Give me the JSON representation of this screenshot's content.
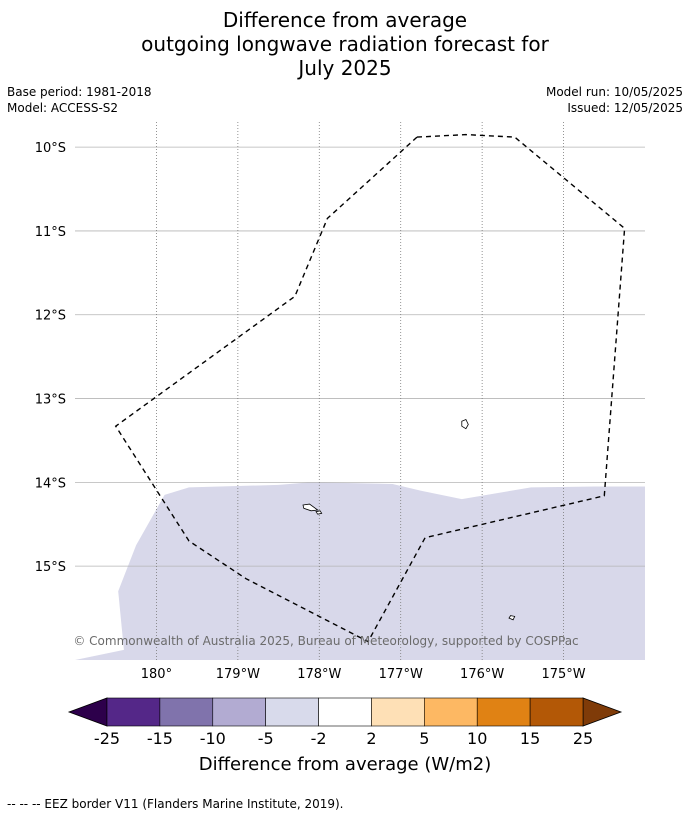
{
  "title": {
    "line1": "Difference from average",
    "line2": "outgoing longwave radiation forecast for",
    "line3": "July 2025"
  },
  "meta": {
    "base_period": "Base period: 1981-2018",
    "model": "Model: ACCESS-S2",
    "model_run": "Model run: 10/05/2025",
    "issued": "Issued: 12/05/2025"
  },
  "map": {
    "lon_range": [
      -181.0,
      -174.0
    ],
    "lat_range": [
      -16.12,
      -9.7
    ],
    "lat_gridlines": [
      {
        "lat": -10,
        "label": "10°S"
      },
      {
        "lat": -11,
        "label": "11°S"
      },
      {
        "lat": -12,
        "label": "12°S"
      },
      {
        "lat": -13,
        "label": "13°S"
      },
      {
        "lat": -14,
        "label": "14°S"
      },
      {
        "lat": -15,
        "label": "15°S"
      }
    ],
    "lon_gridlines": [
      {
        "lon": -180,
        "label": "180°"
      },
      {
        "lon": -179,
        "label": "179°W"
      },
      {
        "lon": -178,
        "label": "178°W"
      },
      {
        "lon": -177,
        "label": "177°W"
      },
      {
        "lon": -176,
        "label": "176°W"
      },
      {
        "lon": -175,
        "label": "175°W"
      }
    ],
    "anomaly_region": {
      "category": "-5 to -2",
      "color": "#d8d8ea",
      "boundary": [
        [
          -181.0,
          -16.12
        ],
        [
          -180.4,
          -16.0
        ],
        [
          -180.47,
          -15.3
        ],
        [
          -180.25,
          -14.75
        ],
        [
          -179.9,
          -14.15
        ],
        [
          -179.6,
          -14.06
        ],
        [
          -178.5,
          -14.03
        ],
        [
          -178.1,
          -14.0
        ],
        [
          -177.1,
          -14.02
        ],
        [
          -176.75,
          -14.1
        ],
        [
          -176.25,
          -14.2
        ],
        [
          -175.4,
          -14.06
        ],
        [
          -174.6,
          -14.05
        ],
        [
          -174.0,
          -14.05
        ],
        [
          -174.0,
          -16.12
        ]
      ]
    },
    "eez_border": [
      [
        -176.8,
        -9.88
      ],
      [
        -176.2,
        -9.85
      ],
      [
        -175.6,
        -9.88
      ],
      [
        -174.25,
        -10.97
      ],
      [
        -174.5,
        -14.16
      ],
      [
        -176.7,
        -14.66
      ],
      [
        -177.4,
        -15.9
      ],
      [
        -178.9,
        -15.15
      ],
      [
        -179.6,
        -14.7
      ],
      [
        -180.5,
        -13.33
      ],
      [
        -178.3,
        -11.78
      ],
      [
        -177.9,
        -10.85
      ]
    ],
    "islands": [
      {
        "name": "island-north",
        "points": [
          [
            -176.25,
            -13.27
          ],
          [
            -176.2,
            -13.25
          ],
          [
            -176.17,
            -13.31
          ],
          [
            -176.2,
            -13.36
          ],
          [
            -176.25,
            -13.33
          ]
        ]
      },
      {
        "name": "island-west",
        "points": [
          [
            -178.2,
            -14.27
          ],
          [
            -178.12,
            -14.26
          ],
          [
            -178.02,
            -14.33
          ],
          [
            -178.1,
            -14.34
          ],
          [
            -178.19,
            -14.31
          ]
        ]
      },
      {
        "name": "island-west-small",
        "points": [
          [
            -178.04,
            -14.35
          ],
          [
            -177.99,
            -14.34
          ],
          [
            -177.97,
            -14.37
          ],
          [
            -178.02,
            -14.38
          ]
        ]
      },
      {
        "name": "island-south",
        "points": [
          [
            -175.65,
            -15.59
          ],
          [
            -175.6,
            -15.6
          ],
          [
            -175.62,
            -15.64
          ],
          [
            -175.67,
            -15.62
          ]
        ]
      }
    ],
    "copyright": "© Commonwealth of Australia 2025, Bureau of Meteorology, supported by COSPPac"
  },
  "colorbar": {
    "under_color": "#2d004b",
    "over_color": "#7f3b08",
    "segments": [
      {
        "color": "#542788"
      },
      {
        "color": "#8073ac"
      },
      {
        "color": "#b2abd2"
      },
      {
        "color": "#d8daeb"
      },
      {
        "color": "#ffffff"
      },
      {
        "color": "#fee0b6"
      },
      {
        "color": "#fdb863"
      },
      {
        "color": "#e08214"
      },
      {
        "color": "#b35806"
      }
    ],
    "ticks": [
      "-25",
      "-15",
      "-10",
      "-5",
      "-2",
      "2",
      "5",
      "10",
      "15",
      "25"
    ],
    "label": "Difference from average (W/m2)"
  },
  "footer": {
    "eez_legend": "--  --  -- EEZ border V11 (Flanders Marine Institute, 2019)."
  }
}
